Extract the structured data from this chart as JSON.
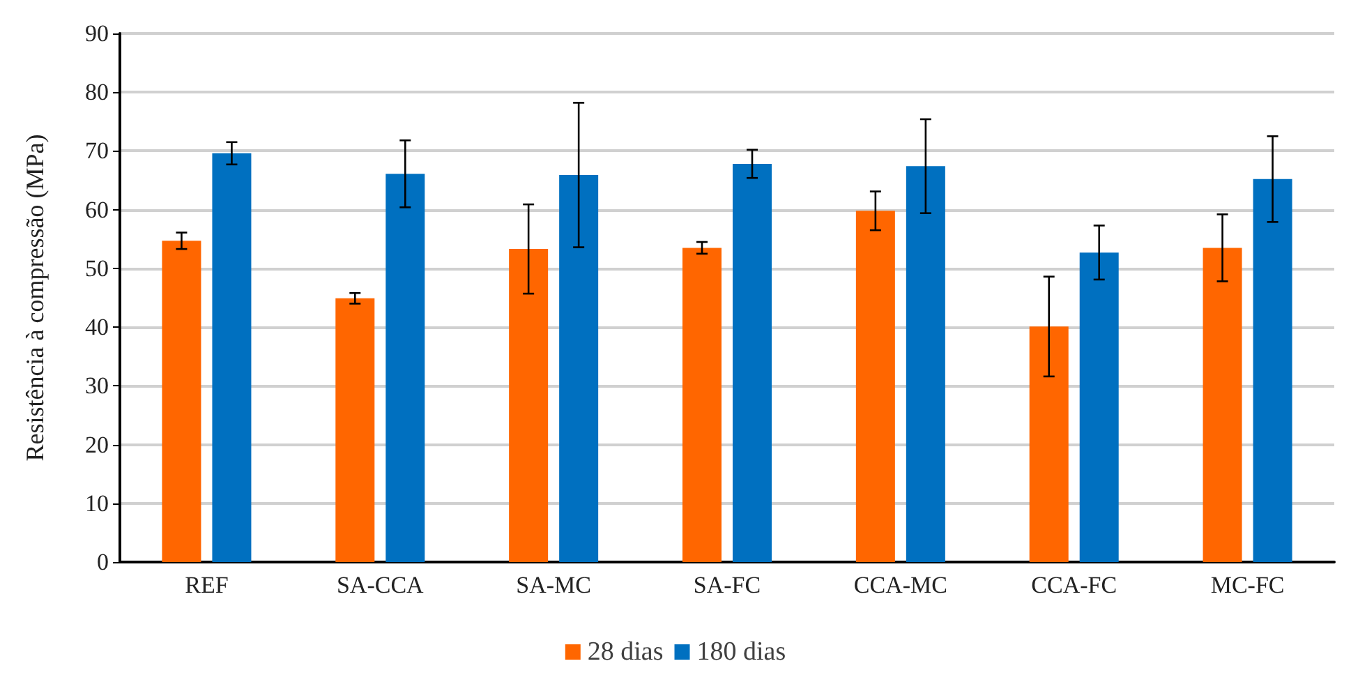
{
  "chart_data": {
    "type": "bar",
    "ylabel": "Resistência à compressão (MPa)",
    "categories": [
      "REF",
      "SA-CCA",
      "SA-MC",
      "SA-FC",
      "CCA-MC",
      "CCA-FC",
      "MC-FC"
    ],
    "series": [
      {
        "name": "28 dias",
        "color": "#ff6600",
        "values": [
          54.7,
          44.9,
          53.3,
          53.5,
          59.8,
          40.1,
          53.5
        ],
        "errors": [
          1.4,
          0.9,
          7.6,
          1,
          3.3,
          8.5,
          5.7
        ]
      },
      {
        "name": "180 dias",
        "color": "#0070c0",
        "values": [
          69.6,
          66.1,
          65.9,
          67.8,
          67.4,
          52.7,
          65.2
        ],
        "errors": [
          1.9,
          5.7,
          12.3,
          2.4,
          8,
          4.6,
          7.3
        ]
      }
    ],
    "ylim": [
      0,
      90
    ],
    "yticks": [
      0,
      10,
      20,
      30,
      40,
      50,
      60,
      70,
      80,
      90
    ],
    "grid": "y",
    "legend": "bottom"
  }
}
